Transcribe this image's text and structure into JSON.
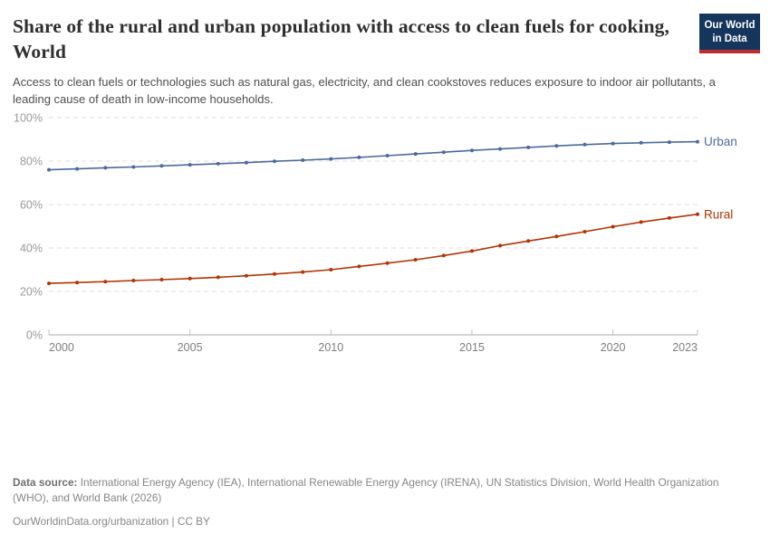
{
  "header": {
    "title": "Share of the rural and urban population with access to clean fuels for cooking, World",
    "subtitle": "Access to clean fuels or technologies such as natural gas, electricity, and clean cookstoves reduces exposure to indoor air pollutants, a leading cause of death in low-income households.",
    "logo": {
      "line1": "Our World",
      "line2": "in Data"
    }
  },
  "chart_data": {
    "type": "line",
    "x": [
      2000,
      2001,
      2002,
      2003,
      2004,
      2005,
      2006,
      2007,
      2008,
      2009,
      2010,
      2011,
      2012,
      2013,
      2014,
      2015,
      2016,
      2017,
      2018,
      2019,
      2020,
      2021,
      2022,
      2023
    ],
    "series": [
      {
        "name": "Urban",
        "color": "#4C6A9C",
        "values": [
          76.0,
          76.4,
          76.9,
          77.3,
          77.8,
          78.3,
          78.8,
          79.3,
          79.9,
          80.4,
          81.0,
          81.7,
          82.5,
          83.3,
          84.1,
          84.9,
          85.6,
          86.3,
          87.0,
          87.6,
          88.1,
          88.4,
          88.7,
          88.9
        ]
      },
      {
        "name": "Rural",
        "color": "#B13507",
        "values": [
          23.7,
          24.1,
          24.5,
          25.0,
          25.4,
          25.9,
          26.5,
          27.2,
          28.0,
          28.9,
          30.0,
          31.5,
          33.0,
          34.6,
          36.5,
          38.6,
          41.1,
          43.2,
          45.3,
          47.5,
          49.8,
          51.9,
          53.8,
          55.5
        ]
      }
    ],
    "title": "Share of the rural and urban population with access to clean fuels for cooking, World",
    "xlabel": "",
    "ylabel": "",
    "ylim": [
      0,
      100
    ],
    "yticks": [
      0,
      20,
      40,
      60,
      80,
      100
    ],
    "ytick_suffix": "%",
    "xticks": [
      2000,
      2005,
      2010,
      2015,
      2020,
      2023
    ],
    "grid": "horizontal-dashed",
    "legend_position": "line-end-labels",
    "marker": "dot"
  },
  "footer": {
    "source_label": "Data source:",
    "source_text": " International Energy Agency (IEA), International Renewable Energy Agency (IRENA), UN Statistics Division, World Health Organization (WHO), and World Bank (2026)",
    "link_text": "OurWorldinData.org/urbanization | CC BY"
  }
}
